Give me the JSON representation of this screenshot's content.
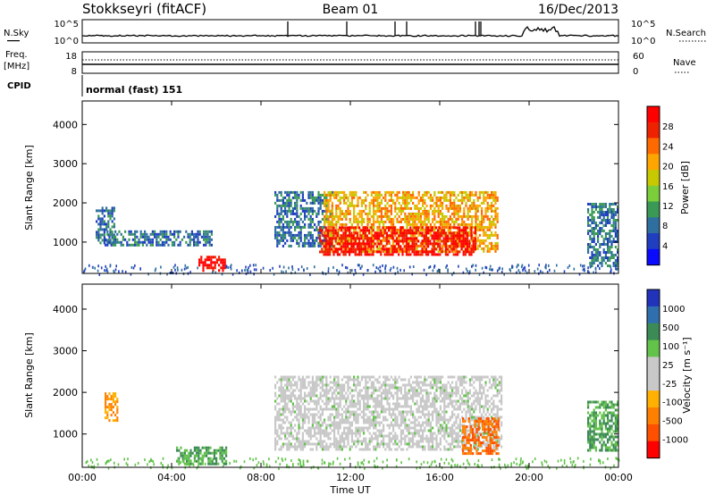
{
  "header": {
    "station": "Stokkseyri (fitACF)",
    "beam": "Beam 01",
    "date": "16/Dec/2013"
  },
  "noise_panel": {
    "left_label": "N.Sky",
    "left_top": "10^5",
    "left_bottom": "10^0",
    "right_top": "10^5",
    "right_bottom": "10^0",
    "right_label": "N.Search"
  },
  "freq_panel": {
    "left_label_1": "Freq.",
    "left_label_2": "[MHz]",
    "left_top": "18",
    "left_bottom": "8",
    "right_top": "60",
    "right_bottom": "0",
    "right_label": "Nave"
  },
  "cpid": {
    "label": "CPID",
    "value": "normal (fast) 151"
  },
  "chart_data": [
    {
      "type": "heatmap",
      "panel": "power",
      "ylabel": "Slant Range [km]",
      "yticks": [
        1000,
        2000,
        3000,
        4000
      ],
      "ylim": [
        200,
        4600
      ],
      "colorbar_label": "Power [dB]",
      "colorbar_ticks": [
        "28",
        "24",
        "20",
        "16",
        "12",
        "8",
        "4"
      ],
      "colorbar_colors": [
        "#ff0000",
        "#ee2200",
        "#ff6a00",
        "#ffa500",
        "#c8c800",
        "#7ccd3a",
        "#3a9a55",
        "#2f6f9f",
        "#1f3fc0",
        "#0a0aff"
      ],
      "regions": [
        {
          "t_start": 0.6,
          "t_end": 1.4,
          "r_low": 1000,
          "r_high": 1900,
          "dB": 6
        },
        {
          "t_start": 1.0,
          "t_end": 5.8,
          "r_low": 900,
          "r_high": 1300,
          "dB": 8
        },
        {
          "t_start": 5.2,
          "t_end": 6.4,
          "r_low": 250,
          "r_high": 650,
          "dB": 28
        },
        {
          "t_start": 8.6,
          "t_end": 11.2,
          "r_low": 900,
          "r_high": 2300,
          "dB": 8
        },
        {
          "t_start": 10.8,
          "t_end": 18.6,
          "r_low": 750,
          "r_high": 2300,
          "dB": 16
        },
        {
          "t_start": 10.6,
          "t_end": 17.6,
          "r_low": 650,
          "r_high": 1400,
          "dB": 28
        },
        {
          "t_start": 22.6,
          "t_end": 24.0,
          "r_low": 400,
          "r_high": 2000,
          "dB": 8
        }
      ]
    },
    {
      "type": "heatmap",
      "panel": "velocity",
      "xlabel": "Time UT",
      "ylabel": "Slant Range [km]",
      "xticks": [
        "00:00",
        "04:00",
        "08:00",
        "12:00",
        "16:00",
        "20:00",
        "00:00"
      ],
      "xlim": [
        0,
        24
      ],
      "yticks": [
        1000,
        2000,
        3000,
        4000
      ],
      "ylim": [
        200,
        4600
      ],
      "colorbar_label": "Velocity [m s⁻¹]",
      "colorbar_ticks": [
        "1000",
        "500",
        "100",
        "25",
        "-25",
        "-100",
        "-500",
        "-1000"
      ],
      "colorbar_colors": [
        "#2233bb",
        "#2f6fae",
        "#3c8a56",
        "#62c24a",
        "#c8c8c8",
        "#c8c8c8",
        "#ffb000",
        "#ff8000",
        "#ff5000",
        "#ff0000"
      ],
      "regions": [
        {
          "t_start": 1.0,
          "t_end": 1.6,
          "r_low": 1300,
          "r_high": 2000,
          "m_s": -100
        },
        {
          "t_start": 4.2,
          "t_end": 6.4,
          "r_low": 250,
          "r_high": 700,
          "m_s": 100
        },
        {
          "t_start": 8.6,
          "t_end": 18.8,
          "r_low": 600,
          "r_high": 2400,
          "m_s": 0
        },
        {
          "t_start": 17.0,
          "t_end": 18.6,
          "r_low": 500,
          "r_high": 1400,
          "m_s": -500
        },
        {
          "t_start": 22.6,
          "t_end": 24.0,
          "r_low": 600,
          "r_high": 1800,
          "m_s": 100
        }
      ]
    }
  ]
}
